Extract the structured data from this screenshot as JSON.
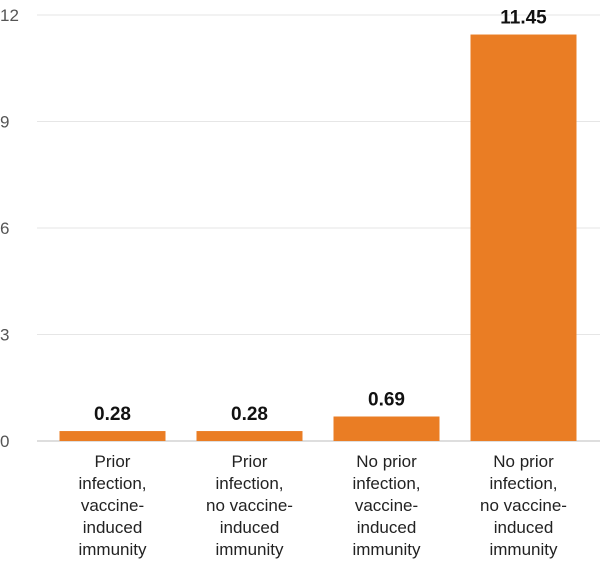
{
  "chart_data": {
    "type": "bar",
    "title": "",
    "xlabel": "",
    "ylabel": "",
    "ylim": [
      0,
      12
    ],
    "yticks": [
      "0",
      "3",
      "6",
      "9",
      "12"
    ],
    "grid": true,
    "bar_color": "#ea7d24",
    "categories": [
      "Prior infection, vaccine-induced immunity",
      "Prior infection, no vaccine-induced immunity",
      "No prior infection, vaccine-induced immunity",
      "No prior infection, no vaccine-induced immunity"
    ],
    "category_lines": [
      [
        "Prior",
        "infection,",
        "vaccine-",
        "induced",
        "immunity"
      ],
      [
        "Prior",
        "infection,",
        "no vaccine-",
        "induced",
        "immunity"
      ],
      [
        "No prior",
        "infection,",
        "vaccine-",
        "induced",
        "immunity"
      ],
      [
        "No prior",
        "infection,",
        "no vaccine-",
        "induced",
        "immunity"
      ]
    ],
    "values": [
      0.28,
      0.28,
      0.69,
      11.45
    ],
    "value_labels": [
      "0.28",
      "0.28",
      "0.69",
      "11.45"
    ]
  }
}
